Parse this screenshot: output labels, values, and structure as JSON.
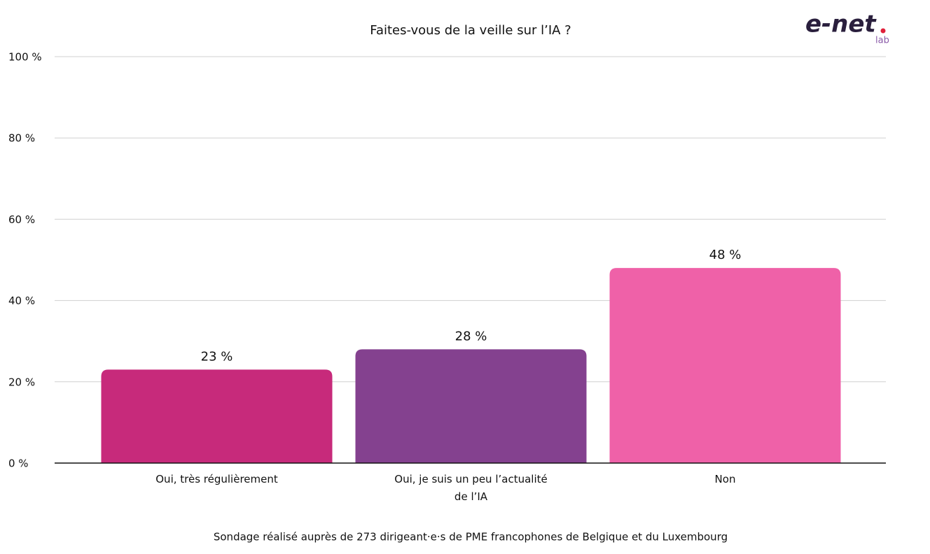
{
  "chart_data": {
    "type": "bar",
    "title": "Faites-vous de la veille sur l’IA ?",
    "categories": [
      "Oui, très régulièrement",
      "Oui, je suis un peu l’actualité de l’IA",
      "Non"
    ],
    "values": [
      23,
      28,
      48
    ],
    "value_labels": [
      "23 %",
      "28 %",
      "48 %"
    ],
    "colors": [
      "#c72a7b",
      "#84418f",
      "#ef61a8"
    ],
    "ylim": [
      0,
      100
    ],
    "yticks": [
      {
        "value": 0,
        "label": "0 %"
      },
      {
        "value": 20,
        "label": "20 %"
      },
      {
        "value": 40,
        "label": "40 %"
      },
      {
        "value": 60,
        "label": "60 %"
      },
      {
        "value": 80,
        "label": "80 %"
      },
      {
        "value": 100,
        "label": "100 %"
      }
    ],
    "grid": true,
    "footnote": "Sondage réalisé auprès de 273 dirigeant·e·s de PME francophones de Belgique et du Luxembourg",
    "logo": "e-net",
    "logo_sub": "lab"
  }
}
